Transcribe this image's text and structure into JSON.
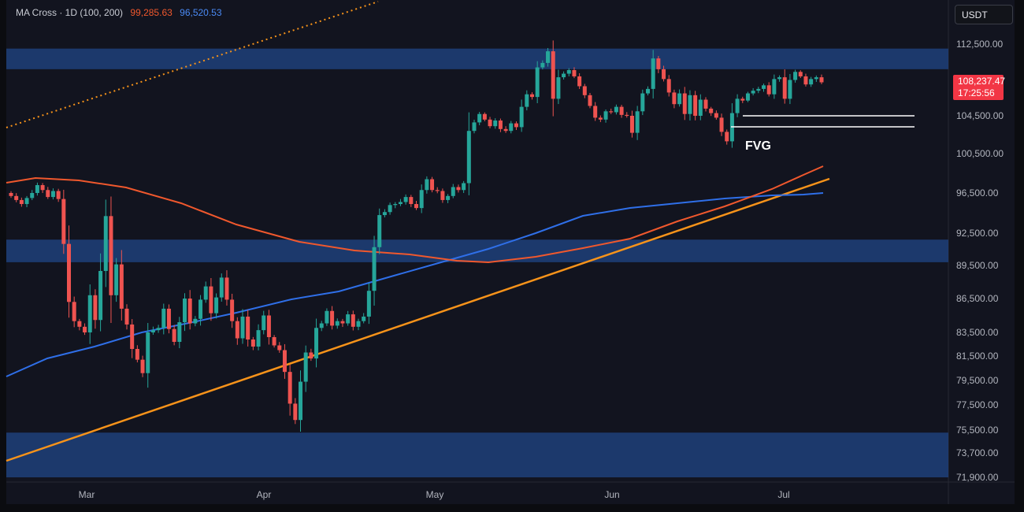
{
  "legend": {
    "title": "MA Cross · 1D (100, 200)",
    "ma100_value": "99,285.63",
    "ma200_value": "96,520.53"
  },
  "currency_button": "USDT",
  "last_price": {
    "value": "108,237.47",
    "countdown": "17:25:56"
  },
  "annotations": {
    "fvg": "FVG"
  },
  "colors": {
    "background": "#12141f",
    "bull": "#26a69a",
    "bear": "#ef5350",
    "ma100": "#f0582d",
    "ma200": "#2f6fe8",
    "trendline": "#f7931a",
    "zone": "#1e3f7a"
  },
  "chart_data": {
    "type": "candlestick",
    "x_axis_labels": [
      "Mar",
      "Apr",
      "May",
      "Jun",
      "Jul"
    ],
    "y_axis_labels": [
      "112,500.00",
      "104,500.00",
      "100,500.00",
      "96,500.00",
      "92,500.00",
      "89,500.00",
      "86,500.00",
      "83,500.00",
      "81,500.00",
      "79,500.00",
      "77,500.00",
      "75,500.00",
      "73,700.00",
      "71,900.00"
    ],
    "last_price": 108237.47,
    "series": [
      {
        "name": "MA Cross 100",
        "value": 99285.63
      },
      {
        "name": "MA Cross 200",
        "value": 96520.53
      }
    ],
    "zones": [
      [
        109700,
        112000
      ],
      [
        89800,
        91900
      ],
      [
        71900,
        75300
      ]
    ],
    "candles_close_approx": [
      96200,
      95800,
      95400,
      96000,
      96500,
      97300,
      96800,
      96100,
      96700,
      95900,
      91500,
      86200,
      84500,
      84000,
      83500,
      86800,
      84600,
      89000,
      94200,
      86800,
      89600,
      85600,
      84200,
      82100,
      81200,
      80100,
      83500,
      83700,
      83900,
      85600,
      83800,
      82700,
      84400,
      86500,
      84300,
      84700,
      86400,
      87600,
      85200,
      86600,
      88400,
      86400,
      84500,
      83000,
      84900,
      82900,
      82300,
      83700,
      85000,
      83100,
      82400,
      82000,
      80200,
      77600,
      76300,
      79400,
      81800,
      81300,
      83900,
      84300,
      85400,
      84100,
      84500,
      84300,
      85100,
      84000,
      84500,
      84900,
      87200,
      91200,
      94300,
      94600,
      95300,
      95400,
      95600,
      96100,
      95400,
      95000,
      96800,
      97900,
      96800,
      96700,
      95800,
      96200,
      97100,
      96800,
      97500,
      102900,
      103800,
      104700,
      104100,
      103400,
      104000,
      103100,
      102900,
      103700,
      103300,
      105500,
      106900,
      106600,
      109900,
      110400,
      111700,
      106400,
      108800,
      109200,
      109600,
      108900,
      107800,
      106800,
      105600,
      104300,
      104100,
      105000,
      104900,
      105500,
      104600,
      104500,
      102700,
      105000,
      107000,
      107500,
      110900,
      109700,
      108600,
      107100,
      105800,
      107000,
      104700,
      106800,
      104500,
      106300,
      105300,
      104800,
      104300,
      102800,
      101800,
      104800,
      106400,
      106200,
      107000,
      107300,
      107500,
      107900,
      106900,
      108600,
      108800,
      106400,
      108500,
      109400,
      108900,
      108000,
      108600,
      108800,
      108237
    ]
  }
}
